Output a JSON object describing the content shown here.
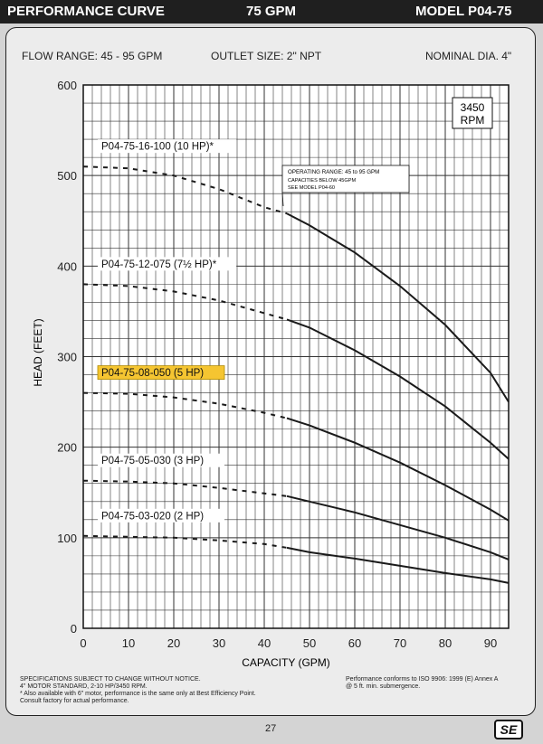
{
  "header": {
    "left": "PERFORMANCE CURVE",
    "center": "75 GPM",
    "right": "MODEL  P04-75"
  },
  "specs": {
    "flow_range": "FLOW RANGE: 45 - 95 GPM",
    "outlet_size": "OUTLET SIZE: 2\" NPT",
    "nominal_dia": "NOMINAL DIA. 4\""
  },
  "rpm_box": {
    "line1": "3450",
    "line2": "RPM"
  },
  "operating_note": {
    "line1": "OPERATING RANGE: 45 to 95 GPM",
    "line2": "CAPACITIES BELOW 45GPM",
    "line3": "SEE MODEL P04-60"
  },
  "footer": {
    "left_lines": [
      "SPECIFICATIONS SUBJECT TO CHANGE WITHOUT NOTICE.",
      "4\" MOTOR STANDARD, 2-10 HP/3450 RPM.",
      "* Also available with 6\" motor,  performance is the same only at Best Efficiency Point.",
      "Consult factory for actual performance."
    ],
    "right_lines": [
      "Performance conforms to ISO 9906: 1999 (E) Annex A",
      "@ 5 ft. min. submergence."
    ],
    "page_number": "27",
    "logo_text": "SE"
  },
  "colors": {
    "highlight": "#f5c531",
    "curve": "#1a1a1a",
    "grid": "#333333"
  },
  "chart_data": {
    "type": "line",
    "xlabel": "CAPACITY (GPM)",
    "ylabel": "HEAD (FEET)",
    "xlim": [
      0,
      94
    ],
    "ylim": [
      0,
      600
    ],
    "x_ticks": [
      0,
      10,
      20,
      30,
      40,
      50,
      60,
      70,
      80,
      90
    ],
    "y_ticks": [
      0,
      100,
      200,
      300,
      400,
      500,
      600
    ],
    "grid": true,
    "dashed_below_x": 45,
    "series": [
      {
        "name": "P04-75-16-100 (10 HP)*",
        "highlight": false,
        "x": [
          0,
          10,
          20,
          30,
          40,
          45,
          50,
          60,
          70,
          80,
          90,
          94
        ],
        "y": [
          510,
          508,
          500,
          485,
          465,
          458,
          445,
          415,
          378,
          335,
          282,
          250
        ]
      },
      {
        "name": "P04-75-12-075 (7½ HP)*",
        "highlight": false,
        "x": [
          0,
          10,
          20,
          30,
          40,
          45,
          50,
          60,
          70,
          80,
          90,
          94
        ],
        "y": [
          380,
          378,
          372,
          362,
          348,
          341,
          332,
          307,
          278,
          245,
          205,
          187
        ]
      },
      {
        "name": "P04-75-08-050 (5 HP)",
        "highlight": true,
        "x": [
          0,
          10,
          20,
          30,
          40,
          45,
          50,
          60,
          70,
          80,
          90,
          94
        ],
        "y": [
          260,
          259,
          255,
          248,
          238,
          232,
          224,
          205,
          183,
          158,
          131,
          119
        ]
      },
      {
        "name": "P04-75-05-030 (3 HP)",
        "highlight": false,
        "x": [
          0,
          10,
          20,
          30,
          40,
          45,
          50,
          60,
          70,
          80,
          90,
          94
        ],
        "y": [
          163,
          162,
          160,
          155,
          149,
          146,
          140,
          128,
          114,
          100,
          84,
          76
        ]
      },
      {
        "name": "P04-75-03-020 (2 HP)",
        "highlight": false,
        "x": [
          0,
          10,
          20,
          30,
          40,
          45,
          50,
          60,
          70,
          80,
          90,
          94
        ],
        "y": [
          102,
          101,
          100,
          97,
          93,
          89,
          84,
          77,
          69,
          61,
          54,
          50
        ]
      }
    ]
  }
}
